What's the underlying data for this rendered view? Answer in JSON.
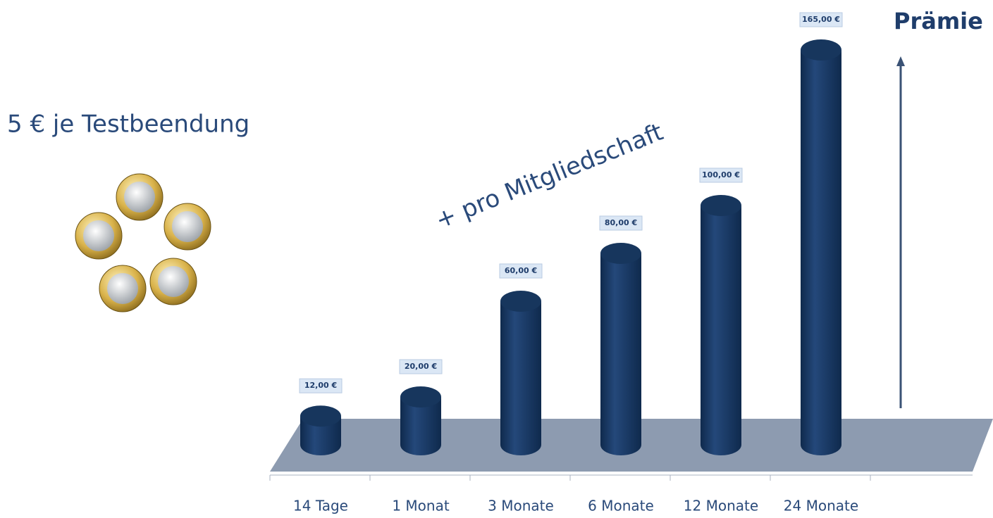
{
  "chart_data": {
    "type": "bar",
    "categories": [
      "14 Tage",
      "1 Monat",
      "3 Monate",
      "6 Monate",
      "12 Monate",
      "24 Monate"
    ],
    "values": [
      12,
      20,
      60,
      80,
      100,
      165
    ],
    "value_labels": [
      "12,00 €",
      "20,00 €",
      "60,00 €",
      "80,00 €",
      "100,00 €",
      "165,00 €"
    ],
    "color": "#17365d",
    "annotations": [
      "5 € je Testbeendung",
      "+ pro Mitgliedschaft",
      "Prämie"
    ]
  }
}
